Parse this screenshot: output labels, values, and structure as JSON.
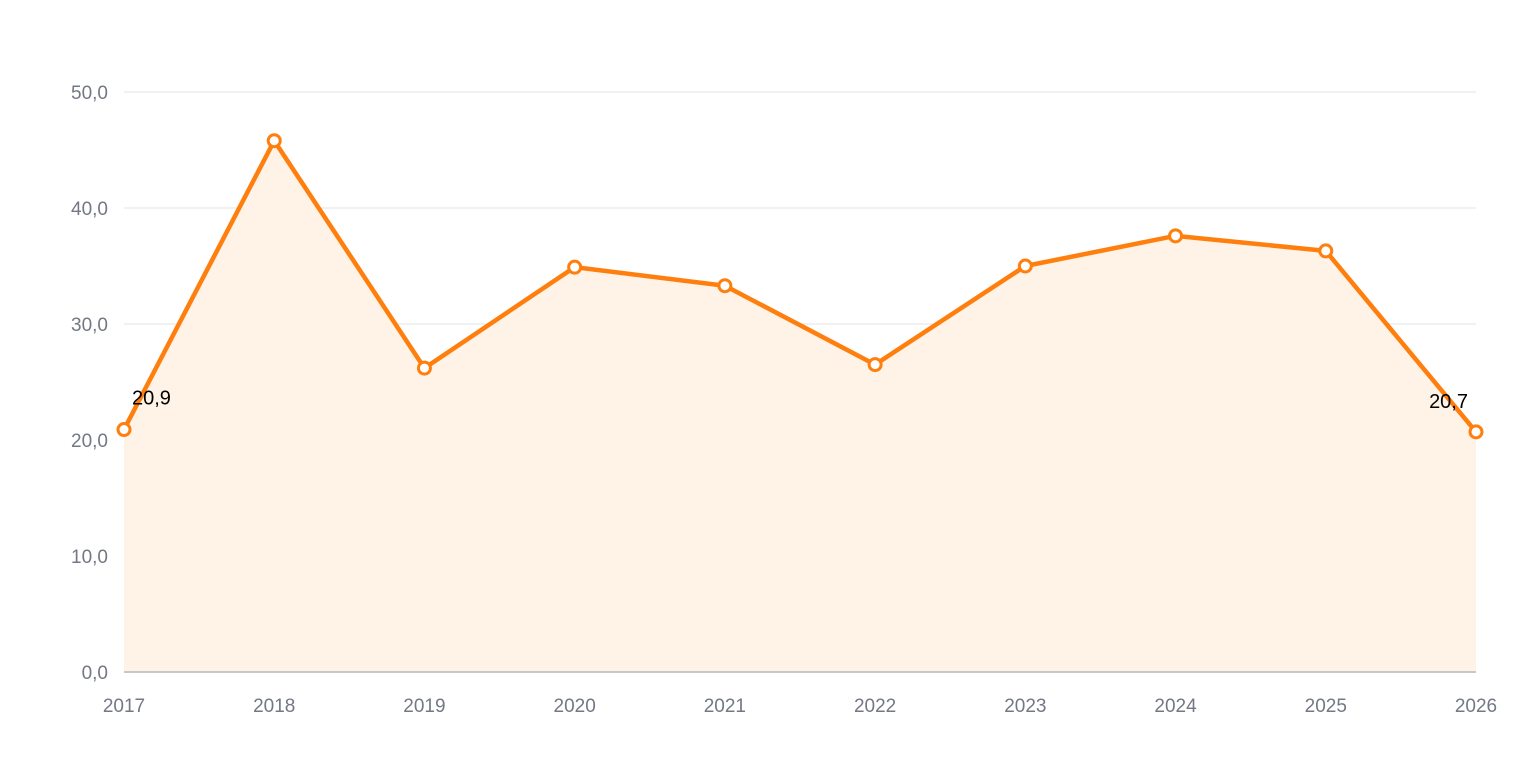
{
  "chart_data": {
    "type": "area",
    "title": "",
    "xlabel": "",
    "ylabel": "",
    "categories": [
      "2017",
      "2018",
      "2019",
      "2020",
      "2021",
      "2022",
      "2023",
      "2024",
      "2025",
      "2026"
    ],
    "series": [
      {
        "values": [
          20.9,
          45.8,
          26.2,
          34.9,
          33.3,
          26.5,
          35.0,
          37.6,
          36.3,
          20.7
        ]
      }
    ],
    "ylim": [
      0,
      50
    ],
    "yticks": [
      0,
      10,
      20,
      30,
      40,
      50
    ],
    "ytick_labels": [
      "0,0",
      "10,0",
      "20,0",
      "30,0",
      "40,0",
      "50,0"
    ],
    "data_labels": [
      {
        "index": 0,
        "text": "20,9"
      },
      {
        "index": 9,
        "text": "20,7"
      }
    ],
    "grid": true,
    "legend": "none",
    "colors": {
      "line": "#ff7f0e",
      "fill": "#fff2e6",
      "grid": "#e3e3e3",
      "axis": "#c8c8c8",
      "marker_fill": "#ffffff"
    }
  }
}
